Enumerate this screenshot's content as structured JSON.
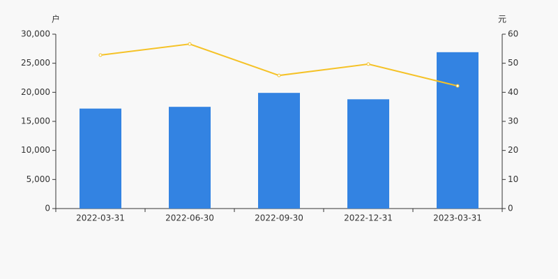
{
  "chart_data": {
    "type": "bar_line",
    "y_label": "户",
    "y2_label": "元",
    "categories": [
      "2022-03-31",
      "2022-06-30",
      "2022-09-30",
      "2022-12-31",
      "2023-03-31"
    ],
    "series": [
      {
        "type": "bar",
        "color": "#3383e2",
        "values": [
          17200,
          17500,
          19900,
          18800,
          26900
        ]
      },
      {
        "type": "line",
        "color": "#f5c227",
        "axis": "y2",
        "values": [
          52.8,
          56.6,
          45.8,
          49.7,
          42.2
        ]
      }
    ],
    "ylim": [
      0,
      30000
    ],
    "yticks": [
      0,
      {
        "value": 5000,
        "label": "5,000"
      },
      {
        "value": 10000,
        "label": "10,000"
      },
      {
        "value": 15000,
        "label": "15,000"
      },
      {
        "value": 20000,
        "label": "20,000"
      },
      {
        "value": 25000,
        "label": "25,000"
      },
      {
        "value": 30000,
        "label": "30,000"
      }
    ],
    "y2lim": [
      0,
      60
    ],
    "y2ticks": [
      0,
      10,
      20,
      30,
      40,
      50,
      60
    ]
  }
}
